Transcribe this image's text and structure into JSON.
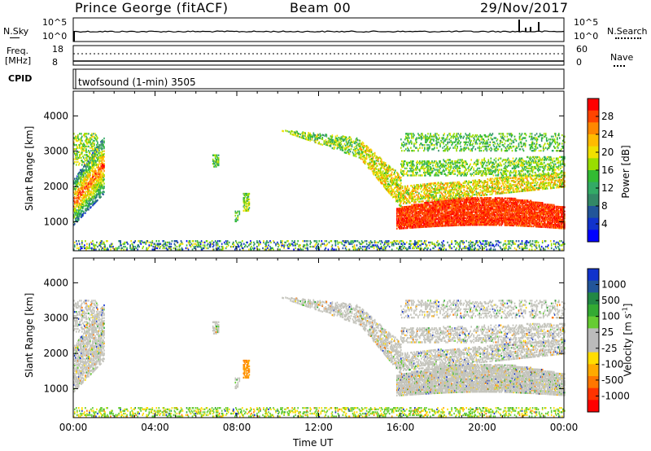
{
  "header": {
    "title": "Prince George (fitACF)",
    "beam": "Beam 00",
    "date": "29/Nov/2017"
  },
  "top_panels": {
    "sky_label": "N.Sky",
    "sky_ticks": [
      "10^5",
      "10^0"
    ],
    "search_label": "N.Search",
    "search_ticks": [
      "10^5",
      "10^0"
    ],
    "freq_label_1": "Freq.",
    "freq_label_2": "[MHz]",
    "freq_ticks": [
      "18",
      "8"
    ],
    "nave_label": "Nave",
    "nave_ticks": [
      "60",
      "0"
    ],
    "cpid_label": "CPID",
    "cpid_text": "twofsound (1-min) 3505"
  },
  "chart_data": [
    {
      "type": "heatmap",
      "name": "power-panel",
      "ylabel": "Slant Range [km]",
      "xlabel": "",
      "colorbar_label": "Power [dB]",
      "colorbar_ticks": [
        "28",
        "24",
        "20",
        "16",
        "12",
        "8",
        "4"
      ],
      "colorbar_colors": [
        "#ff0000",
        "#ff4400",
        "#ff8800",
        "#ffbb00",
        "#f0e000",
        "#99dd00",
        "#33bb33",
        "#33aa66",
        "#338866",
        "#225599",
        "#1133cc",
        "#0000ff"
      ],
      "yticks": [
        "4000",
        "3000",
        "2000",
        "1000"
      ],
      "ylim": [
        180,
        4700
      ],
      "xlim": [
        0,
        24
      ]
    },
    {
      "type": "heatmap",
      "name": "velocity-panel",
      "ylabel": "Slant Range [km]",
      "xlabel": "Time UT",
      "colorbar_label": "Velocity  [m s",
      "colorbar_label_sup": "-1",
      "colorbar_label_end": "]",
      "colorbar_ticks": [
        "1000",
        "500",
        "100",
        "25",
        "-25",
        "-100",
        "-500",
        "-1000"
      ],
      "colorbar_colors": [
        "#1133cc",
        "#225599",
        "#228844",
        "#33aa33",
        "#66cc33",
        "#bbbbbb",
        "#bbbbbb",
        "#ffdd00",
        "#ffaa00",
        "#ff7700",
        "#ff3300",
        "#ff0000"
      ],
      "yticks": [
        "4000",
        "3000",
        "2000",
        "1000"
      ],
      "ylim": [
        180,
        4700
      ],
      "xlim": [
        0,
        24
      ],
      "xticks": [
        "00:00",
        "04:00",
        "08:00",
        "12:00",
        "16:00",
        "20:00",
        "00:00"
      ]
    }
  ]
}
